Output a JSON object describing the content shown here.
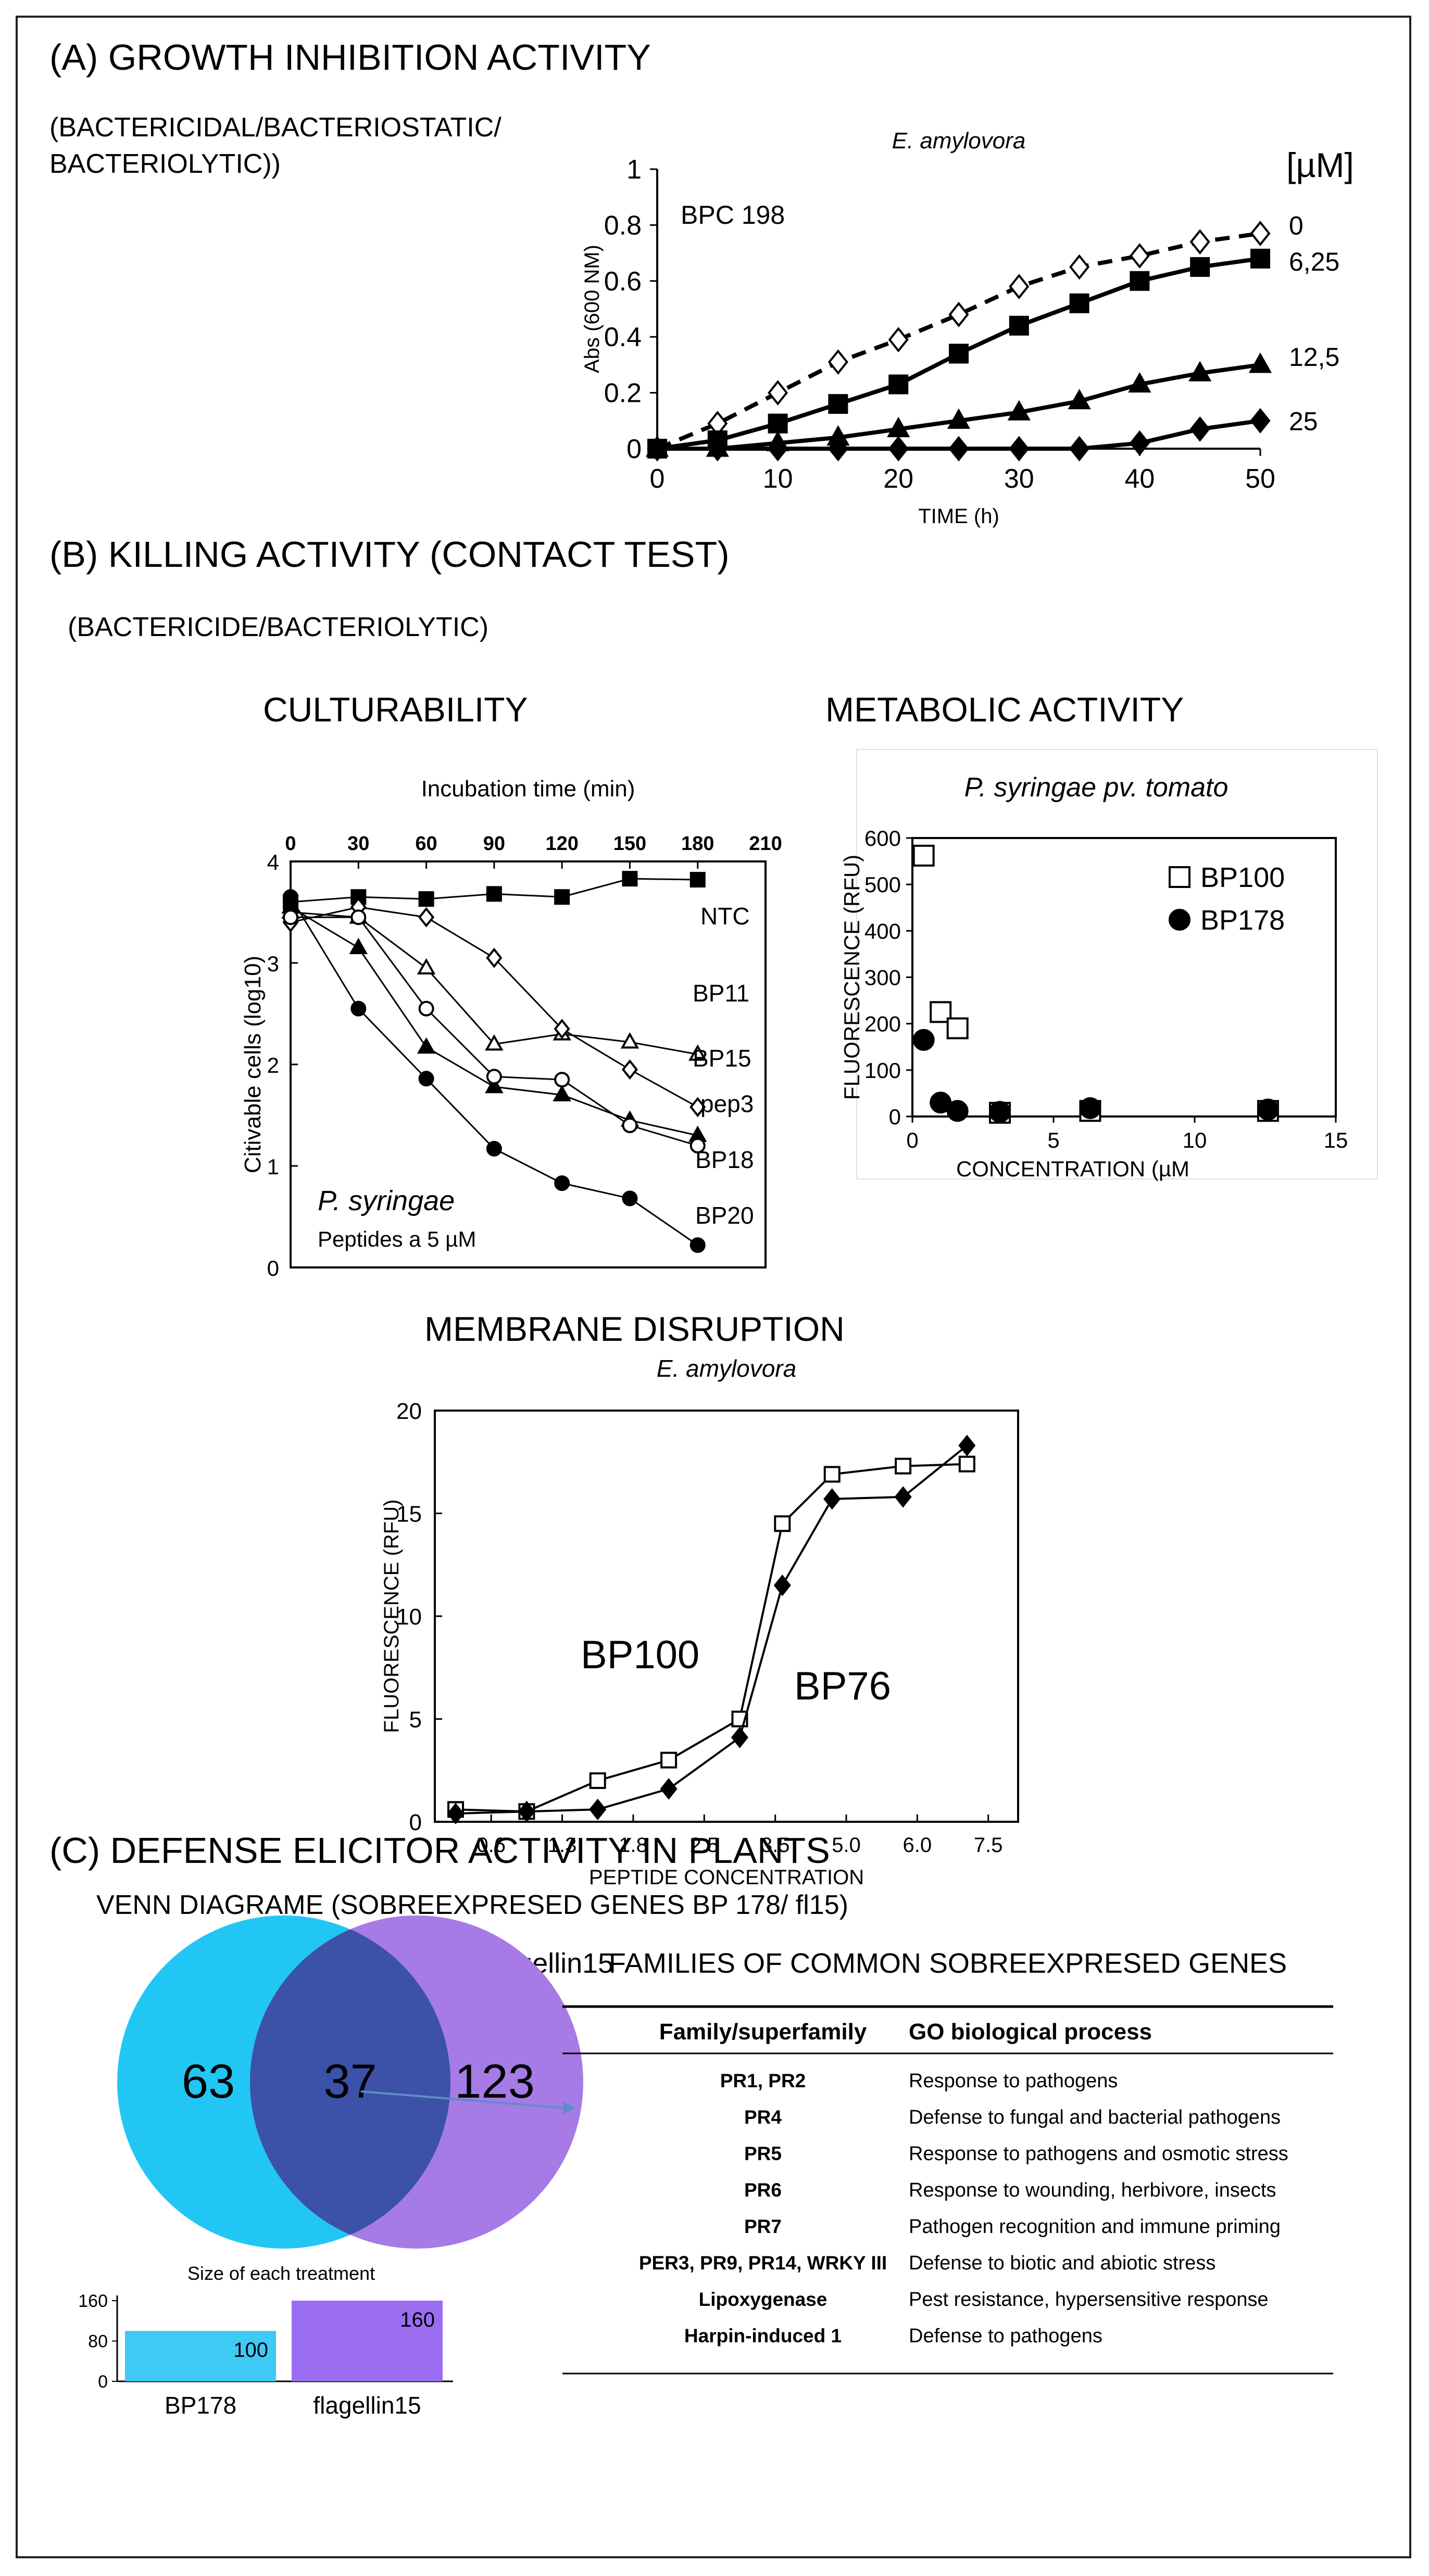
{
  "sections": {
    "a": {
      "title": "(A) GROWTH INHIBITION ACTIVITY",
      "subtitle_line1": "(BACTERICIDAL/BACTERIOSTATIC/",
      "subtitle_line2": "BACTERIOLYTIC))"
    },
    "b": {
      "title": "(B) KILLING ACTIVITY (CONTACT TEST)",
      "subtitle": "(BACTERICIDE/BACTERIOLYTIC)",
      "culturability_title": "CULTURABILITY",
      "metabolic_title": "METABOLIC ACTIVITY",
      "membrane_title": "MEMBRANE DISRUPTION"
    },
    "c": {
      "title": "(C) DEFENSE ELICITOR ACTIVITY IN PLANTS",
      "subtitle": "VENN DIAGRAME (SOBREEXPRESED GENES BP 178/ fl15)"
    }
  },
  "chart_data": [
    {
      "id": "growth",
      "type": "line",
      "title": "E. amylovora",
      "annotation": "BPC 198",
      "unit_label": "[µM]",
      "xlabel": "TIME (h)",
      "ylabel": "Abs (600 NM)",
      "xlim": [
        0,
        50
      ],
      "ylim": [
        0,
        1
      ],
      "xticks": [
        "0",
        "10",
        "20",
        "30",
        "40",
        "50"
      ],
      "yticks": [
        "0",
        "0.2",
        "0.4",
        "0.6",
        "0.8",
        "1"
      ],
      "x": [
        0,
        5,
        10,
        15,
        20,
        25,
        30,
        35,
        40,
        45,
        50
      ],
      "series": [
        {
          "name": "0",
          "marker": "diamond-open",
          "dashed": true,
          "values": [
            0,
            0.09,
            0.2,
            0.31,
            0.39,
            0.48,
            0.58,
            0.65,
            0.69,
            0.74,
            0.77
          ]
        },
        {
          "name": "6,25",
          "marker": "square-filled",
          "dashed": false,
          "values": [
            0,
            0.03,
            0.09,
            0.16,
            0.23,
            0.34,
            0.44,
            0.52,
            0.6,
            0.65,
            0.68
          ]
        },
        {
          "name": "12,5",
          "marker": "triangle-filled",
          "dashed": false,
          "values": [
            0,
            0,
            0.02,
            0.04,
            0.07,
            0.1,
            0.13,
            0.17,
            0.23,
            0.27,
            0.3
          ]
        },
        {
          "name": "25",
          "marker": "diamond-filled",
          "dashed": false,
          "values": [
            0,
            0,
            0,
            0,
            0,
            0,
            0,
            0,
            0.02,
            0.07,
            0.1
          ]
        }
      ]
    },
    {
      "id": "culturability",
      "type": "line",
      "xlabel_top": "Incubation time (min)",
      "ylabel": "Citivable cells (log10)",
      "annotation_species": "P. syringae",
      "annotation_dose": "Peptides a 5 µM",
      "xlim": [
        0,
        210
      ],
      "ylim": [
        0,
        4
      ],
      "xticks": [
        "0",
        "30",
        "60",
        "90",
        "120",
        "150",
        "180",
        "210"
      ],
      "yticks": [
        "0",
        "1",
        "2",
        "3",
        "4"
      ],
      "series": [
        {
          "name": "NTC",
          "marker": "square-filled",
          "x": [
            0,
            30,
            60,
            90,
            120,
            150,
            180
          ],
          "values": [
            3.6,
            3.65,
            3.63,
            3.68,
            3.65,
            3.83,
            3.82
          ]
        },
        {
          "name": "BP11",
          "marker": "triangle-open",
          "x": [
            0,
            30,
            60,
            90,
            120,
            150,
            180
          ],
          "values": [
            3.5,
            3.45,
            2.95,
            2.2,
            2.3,
            2.22,
            2.1
          ]
        },
        {
          "name": "BP15",
          "marker": "diamond-open",
          "x": [
            0,
            30,
            60,
            90,
            120,
            150,
            180
          ],
          "values": [
            3.4,
            3.55,
            3.45,
            3.05,
            2.35,
            1.95,
            1.58
          ]
        },
        {
          "name": "pep3",
          "marker": "triangle-filled",
          "x": [
            0,
            30,
            60,
            90,
            120,
            150,
            180
          ],
          "values": [
            3.55,
            3.15,
            2.17,
            1.78,
            1.7,
            1.45,
            1.3
          ]
        },
        {
          "name": "BP18",
          "marker": "circle-open",
          "x": [
            0,
            30,
            60,
            90,
            120,
            150,
            180
          ],
          "values": [
            3.45,
            3.45,
            2.55,
            1.88,
            1.85,
            1.4,
            1.2
          ]
        },
        {
          "name": "BP20",
          "marker": "circle-filled",
          "x": [
            0,
            30,
            60,
            90,
            120,
            150,
            180
          ],
          "values": [
            3.65,
            2.55,
            1.86,
            1.17,
            0.83,
            0.68,
            0.22
          ]
        }
      ]
    },
    {
      "id": "metabolic",
      "type": "scatter",
      "title": "P. syringae pv. tomato",
      "xlabel": "CONCENTRATION (µM",
      "ylabel": "FLUORESCENCE (RFU)",
      "xlim": [
        0,
        15
      ],
      "ylim": [
        0,
        600
      ],
      "xticks": [
        "0",
        "5",
        "10",
        "15"
      ],
      "yticks": [
        "0",
        "100",
        "200",
        "300",
        "400",
        "500",
        "600"
      ],
      "series": [
        {
          "name": "BP100",
          "marker": "square-open",
          "x": [
            0.4,
            1.0,
            1.6,
            3.1,
            6.3,
            12.6
          ],
          "values": [
            562,
            225,
            190,
            8,
            12,
            12
          ]
        },
        {
          "name": "BP178",
          "marker": "circle-filled",
          "x": [
            0.4,
            1.0,
            1.6,
            3.1,
            6.3,
            12.6
          ],
          "values": [
            165,
            30,
            12,
            10,
            18,
            15
          ]
        }
      ]
    },
    {
      "id": "membrane",
      "type": "line",
      "title": "E. amylovora",
      "xlabel": "PEPTIDE CONCENTRATION",
      "ylabel": "FLUORESCENCE  (RFU)",
      "categories": [
        "0.6",
        "1.3",
        "1.8",
        "2.5",
        "3.5",
        "5.0",
        "6.0",
        "7.5"
      ],
      "ylim": [
        0,
        20
      ],
      "yticks": [
        "0",
        "5",
        "10",
        "15",
        "20"
      ],
      "label_bp100": "BP100",
      "label_bp76": "BP76",
      "series": [
        {
          "name": "BP100",
          "marker": "square-open",
          "x": [
            0,
            1,
            2,
            3,
            4,
            4.6,
            5.3,
            6.3,
            7.2
          ],
          "values": [
            0.6,
            0.5,
            2.0,
            3.0,
            5.0,
            14.5,
            16.9,
            17.3,
            17.4
          ]
        },
        {
          "name": "BP76",
          "marker": "diamond-filled",
          "x": [
            0,
            1,
            2,
            3,
            4,
            4.6,
            5.3,
            6.3,
            7.2
          ],
          "values": [
            0.4,
            0.5,
            0.6,
            1.6,
            4.1,
            11.5,
            15.7,
            15.8,
            18.3
          ]
        }
      ]
    },
    {
      "id": "venn",
      "type": "venn",
      "set_a": {
        "name": "BP178",
        "only": 63,
        "color": "#22c6f4"
      },
      "set_b": {
        "name": "flagellin15",
        "only": 123,
        "color": "#a67be6"
      },
      "overlap": 37,
      "overlap_color": "#3b52a8",
      "bar_title": "Size of each treatment",
      "bar_yticks": [
        "0",
        "80",
        "160"
      ],
      "bar_ylim": [
        0,
        160
      ],
      "bars": [
        {
          "name": "BP178",
          "value": 100,
          "label": "100",
          "color": "#3fc9f5"
        },
        {
          "name": "flagellin15",
          "value": 160,
          "label": "160",
          "color": "#9a6df0"
        }
      ]
    },
    {
      "id": "gene-families",
      "type": "table",
      "title": "FAMILIES OF COMMON SOBREEXPRESED GENES",
      "columns": [
        "Family/superfamily",
        "GO biological process"
      ],
      "rows": [
        [
          "PR1, PR2",
          "Response to pathogens"
        ],
        [
          "PR4",
          "Defense to fungal and bacterial pathogens"
        ],
        [
          "PR5",
          "Response to pathogens and osmotic stress"
        ],
        [
          "PR6",
          "Response to wounding, herbivore, insects"
        ],
        [
          "PR7",
          "Pathogen recognition and immune priming"
        ],
        [
          "PER3, PR9, PR14, WRKY III",
          "Defense to biotic and abiotic stress"
        ],
        [
          "Lipoxygenase",
          "Pest resistance, hypersensitive response"
        ],
        [
          "Harpin-induced 1",
          "Defense to pathogens"
        ]
      ]
    }
  ]
}
